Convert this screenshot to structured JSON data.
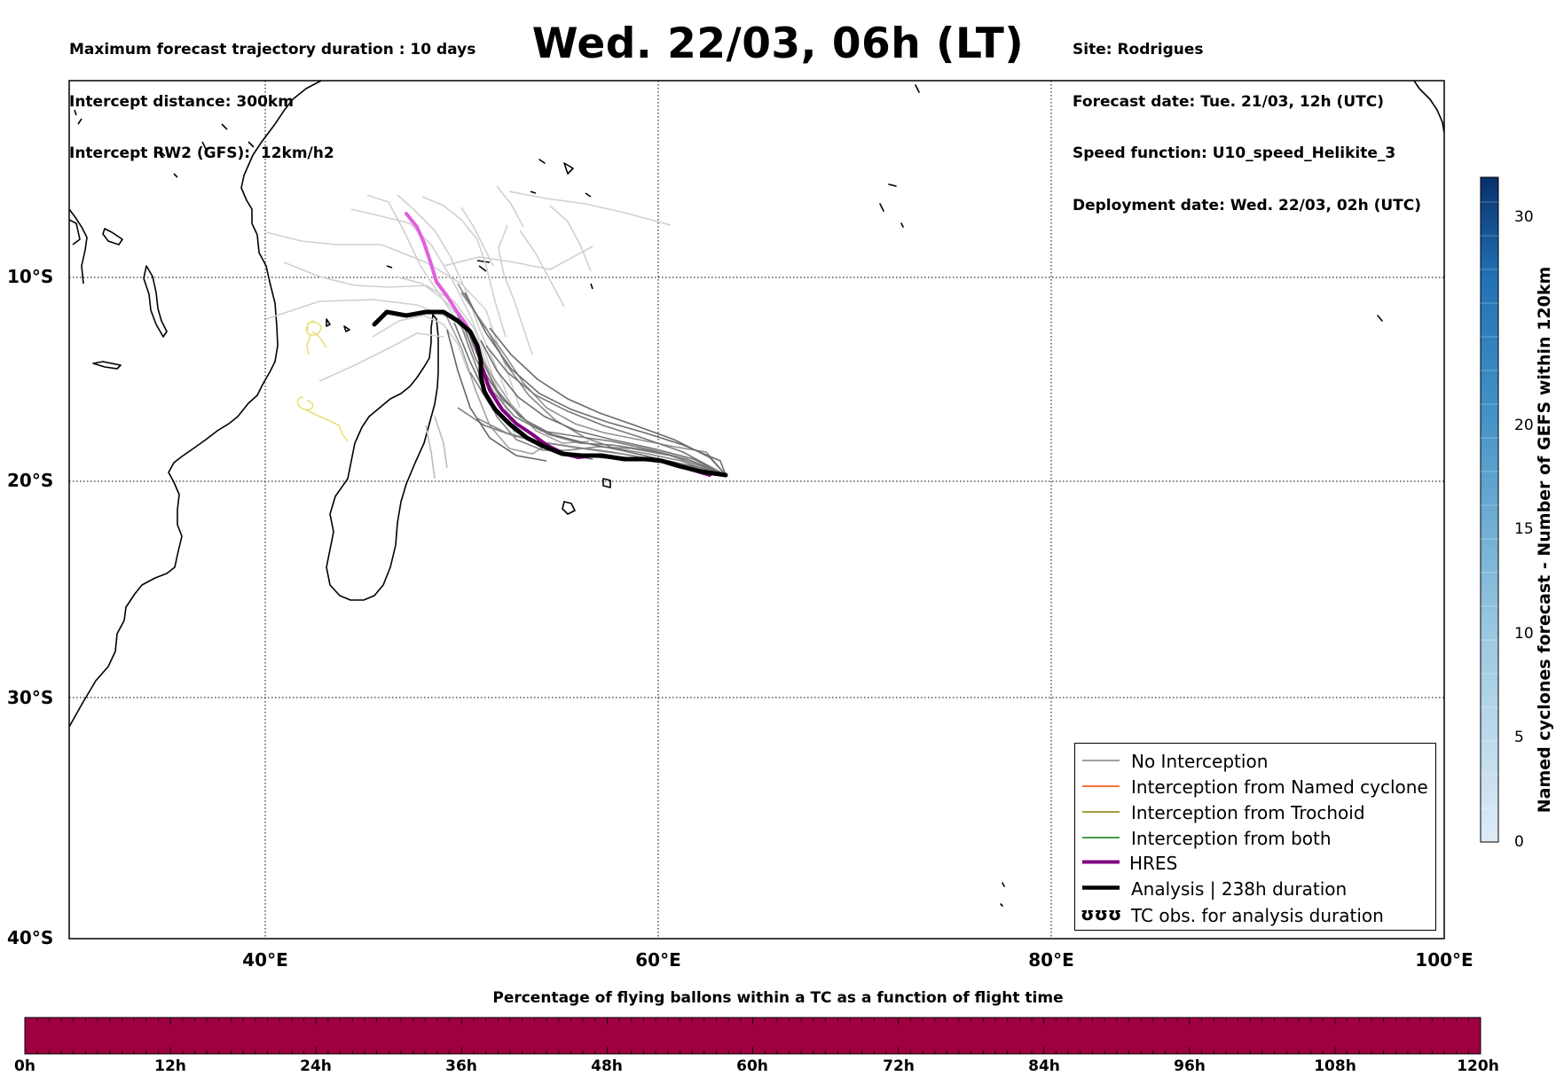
{
  "header_left": [
    "Maximum forecast trajectory duration : 10 days",
    "Intercept distance: 300km",
    "Intercept RW2 (GFS):  12km/h2"
  ],
  "title": "Wed. 22/03, 06h (LT)",
  "header_right": [
    "Site: Rodrigues",
    "Forecast date: Tue. 21/03, 12h (UTC)",
    "Speed function: U10_speed_Helikite_3",
    "Deployment date: Wed. 22/03, 02h (UTC)"
  ],
  "map": {
    "lon_range": [
      30,
      100
    ],
    "lat_range": [
      -40,
      0
    ],
    "lat_labels": [
      "10°S",
      "20°S",
      "30°S",
      "40°S"
    ],
    "lon_labels": [
      "40°E",
      "60°E",
      "80°E",
      "100°E"
    ],
    "grid": "dotted"
  },
  "colorbar": {
    "title": "Named cyclones forecast - Number of GEFS within 120km",
    "ticks": [
      "0",
      "5",
      "10",
      "15",
      "20",
      "30"
    ],
    "colors": [
      "#deebf7",
      "#08306b"
    ]
  },
  "legend": {
    "items": [
      {
        "label": "No Interception",
        "color": "#808080",
        "style": "thin"
      },
      {
        "label": "Interception from Named cyclone",
        "color": "#ff4500",
        "style": "thin"
      },
      {
        "label": "Interception from Trochoid",
        "color": "#808000",
        "style": "thin"
      },
      {
        "label": "Interception from both",
        "color": "#008000",
        "style": "thin"
      },
      {
        "label": "HRES",
        "color": "#800080",
        "style": "thick"
      },
      {
        "label": "Analysis | 238h duration",
        "color": "#000000",
        "style": "thick"
      },
      {
        "label": "TC obs. for analysis duration",
        "color": "#000000",
        "style": "symbol",
        "symbol": "ʊʊʊ"
      }
    ]
  },
  "bottom_bar": {
    "title": "Percentage of flying ballons within a TC as a function of flight time",
    "labels": [
      "0h",
      "12h",
      "24h",
      "36h",
      "48h",
      "60h",
      "72h",
      "84h",
      "96h",
      "108h",
      "120h"
    ],
    "color": "#9e0040"
  }
}
